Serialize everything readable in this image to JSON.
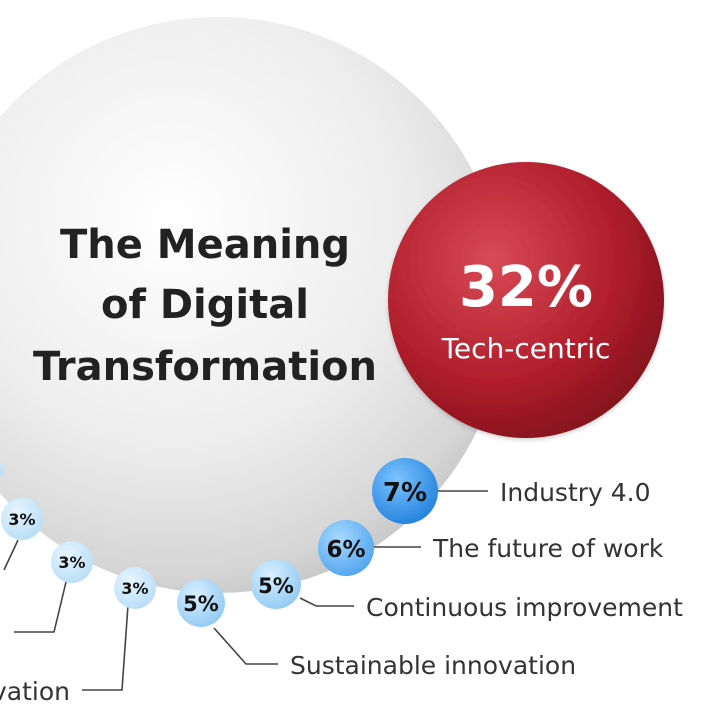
{
  "center": {
    "title_lines": [
      "The Meaning",
      "of Digital",
      "Transformation"
    ]
  },
  "segments": [
    {
      "id": "tech-centric",
      "percent": "32%",
      "label": "Tech-centric",
      "value": 32
    },
    {
      "id": "industry-4",
      "percent": "7%",
      "label": "Industry 4.0",
      "value": 7
    },
    {
      "id": "future-of-work",
      "percent": "6%",
      "label": "The future of work",
      "value": 6
    },
    {
      "id": "continuous-improvement",
      "percent": "5%",
      "label": "Continuous improvement",
      "value": 5
    },
    {
      "id": "sustainable-innovation",
      "percent": "5%",
      "label": "Sustainable innovation",
      "value": 5
    },
    {
      "id": "small-a",
      "percent": "3%",
      "label": "vation",
      "value": 3
    },
    {
      "id": "small-b",
      "percent": "3%",
      "label": "",
      "value": 3
    },
    {
      "id": "small-c",
      "percent": "3%",
      "label": "",
      "value": 3
    }
  ],
  "colors": {
    "center_sphere": "#e2e2e2",
    "tech_sphere": "#b01e2c",
    "left_sphere": "#3a3f86",
    "blue_strong": "#2f8fe8",
    "blue_mid": "#64b3f3",
    "blue_light": "#a9d7f7",
    "blue_pale": "#c8e6fa",
    "label_text": "#333333",
    "title_text": "#222222"
  }
}
